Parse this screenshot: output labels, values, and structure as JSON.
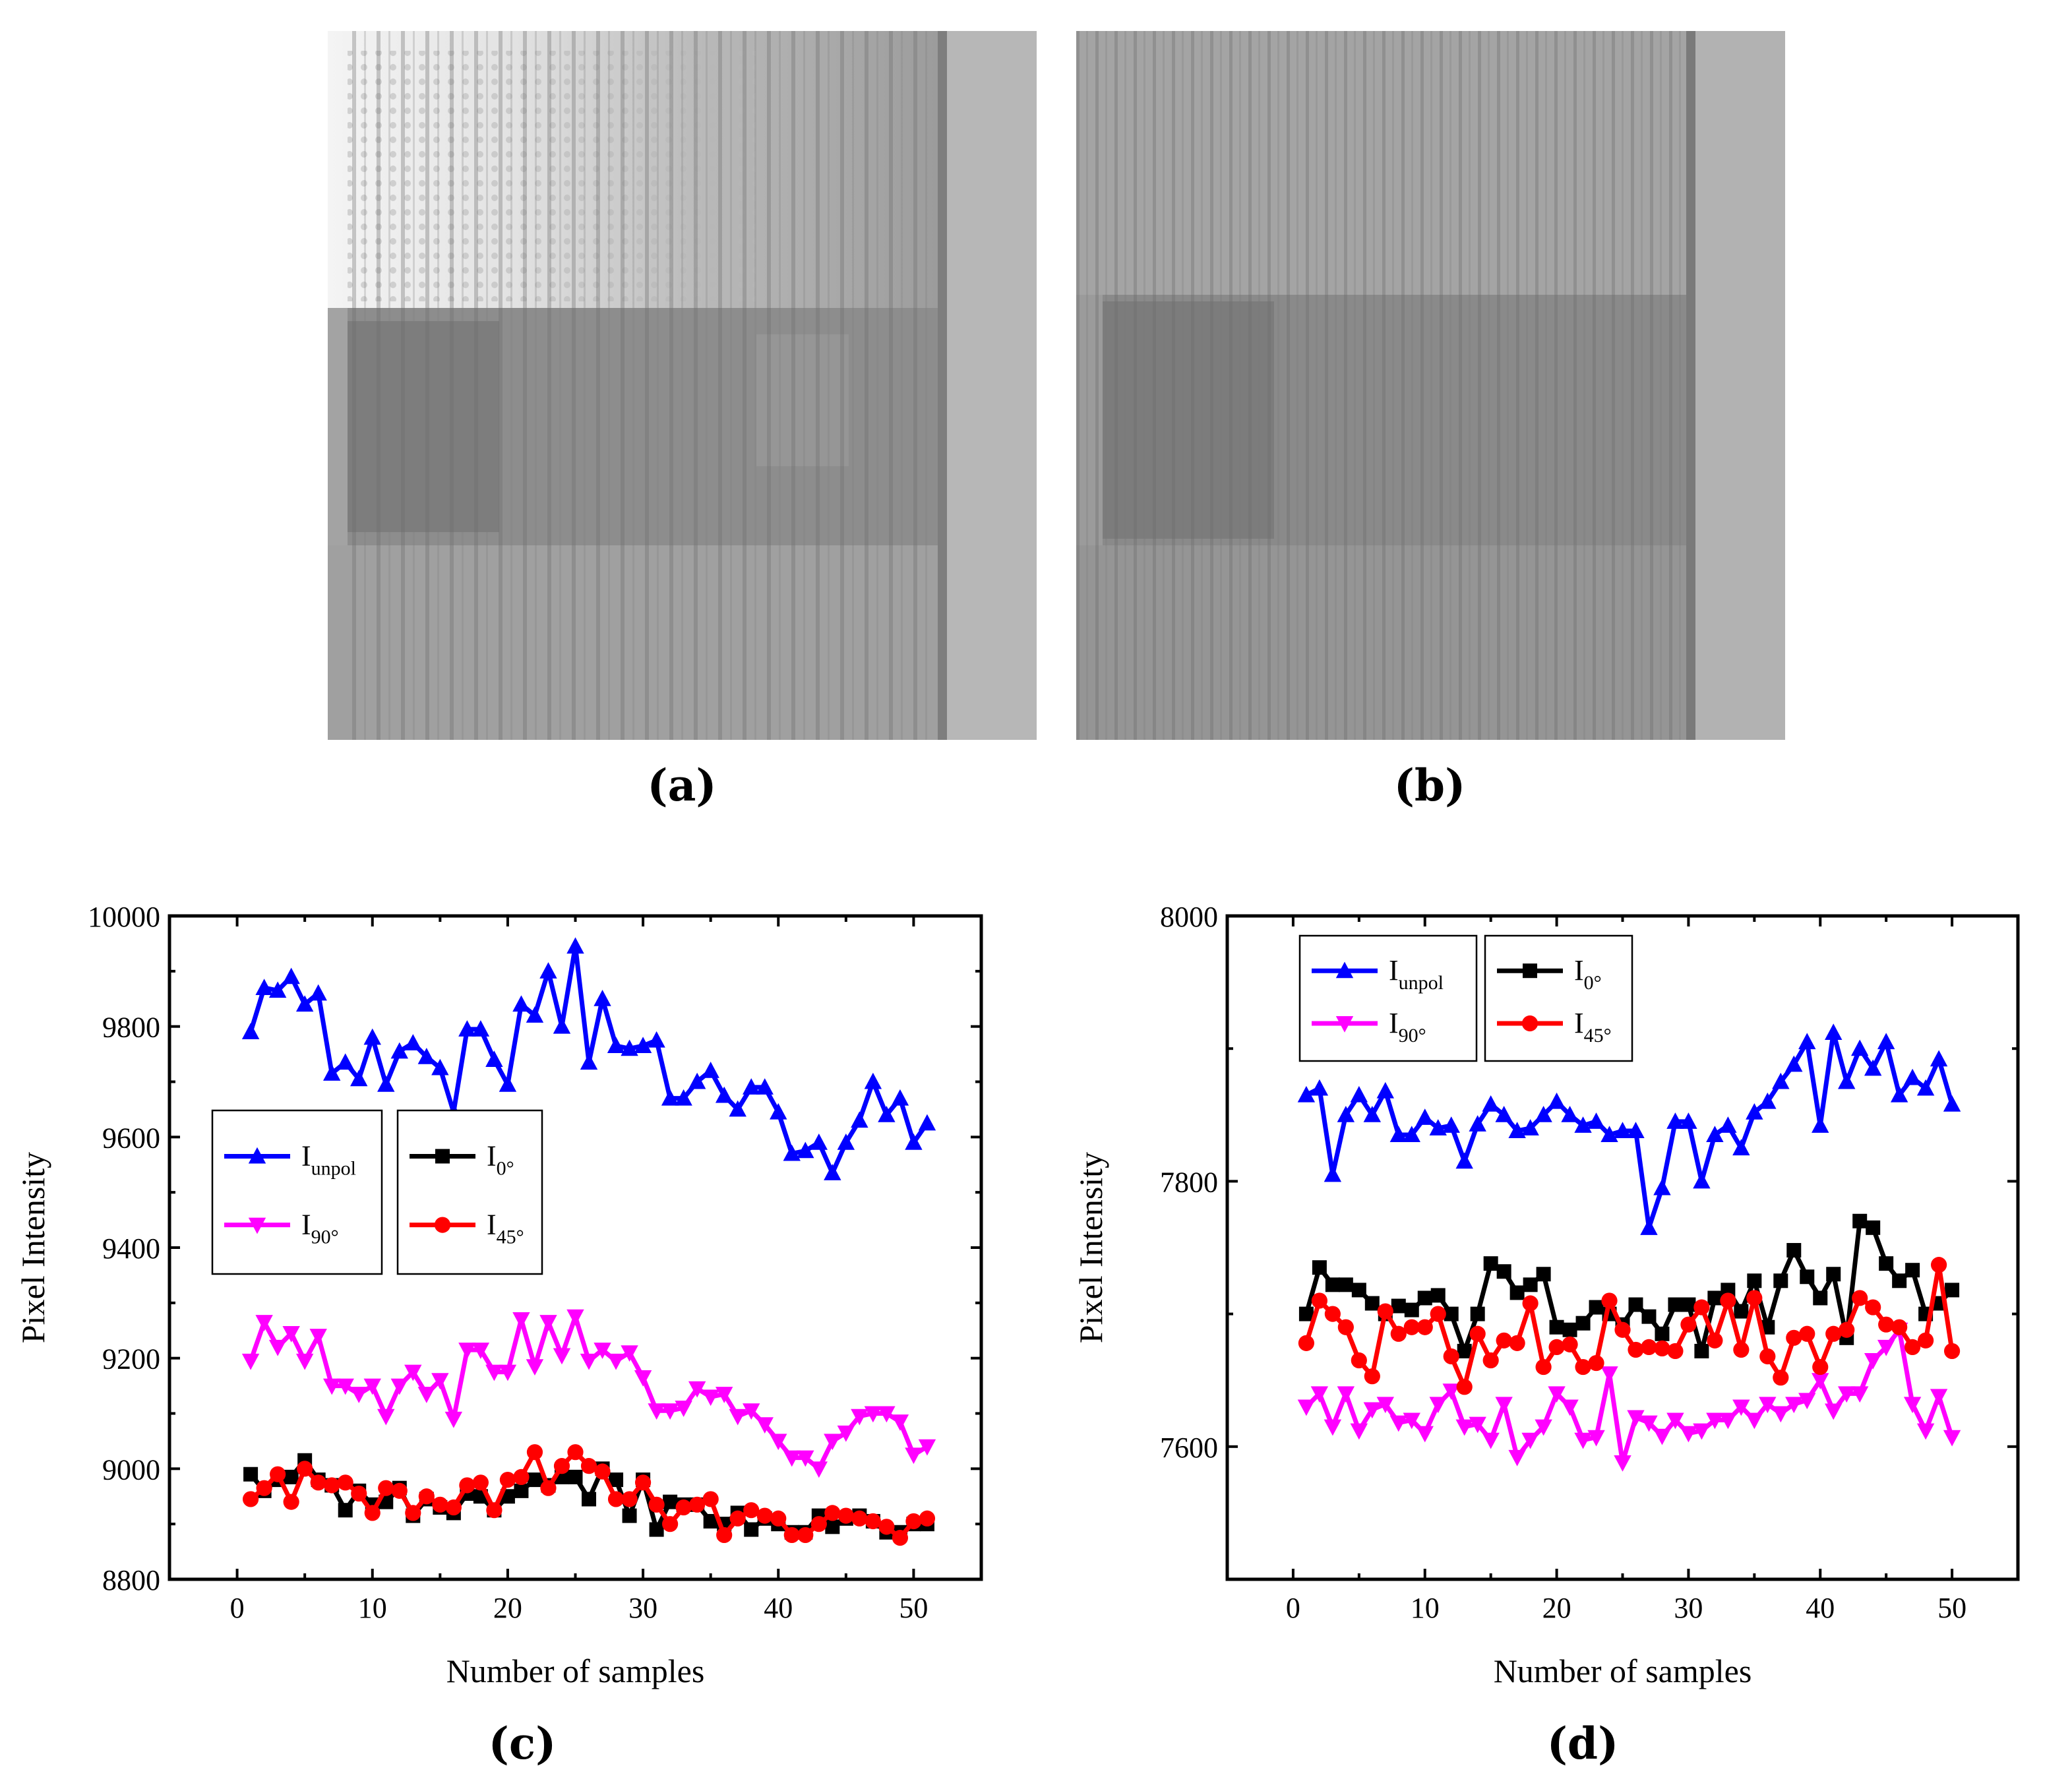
{
  "captions": {
    "a": "(a)",
    "b": "(b)",
    "c": "(c)",
    "d": "(d)"
  },
  "images": {
    "a": {
      "description_name": "polarization-image-unpolarized",
      "tone": "grayscale"
    },
    "b": {
      "description_name": "polarization-image-polarized",
      "tone": "grayscale"
    }
  },
  "chart_data": [
    {
      "type": "line",
      "panel": "c",
      "xlabel": "Number of samples",
      "ylabel": "Pixel Intensity",
      "xlim": [
        -5,
        55
      ],
      "ylim": [
        8800,
        10000
      ],
      "xticks": [
        0,
        10,
        20,
        30,
        40,
        50
      ],
      "yticks": [
        8800,
        9000,
        9200,
        9400,
        9600,
        9800,
        10000
      ],
      "legend_position": "middle-left",
      "series": [
        {
          "name": "I_unpol",
          "label_main": "I",
          "label_sub": "unpol",
          "color": "#0000ff",
          "marker": "triangle-up",
          "values": [
            9790,
            9870,
            9865,
            9890,
            9840,
            9860,
            9715,
            9735,
            9705,
            9780,
            9695,
            9755,
            9770,
            9745,
            9725,
            9645,
            9795,
            9795,
            9740,
            9695,
            9840,
            9820,
            9900,
            9800,
            9945,
            9735,
            9850,
            9765,
            9760,
            9765,
            9775,
            9670,
            9670,
            9700,
            9720,
            9675,
            9650,
            9690,
            9690,
            9645,
            9570,
            9575,
            9590,
            9535,
            9590,
            9630,
            9700,
            9640,
            9670,
            9590,
            9625
          ]
        },
        {
          "name": "I_90",
          "label_main": "I",
          "label_sub": "90°",
          "color": "#ff00ff",
          "marker": "triangle-down",
          "values": [
            9195,
            9265,
            9220,
            9245,
            9195,
            9240,
            9150,
            9150,
            9135,
            9150,
            9095,
            9150,
            9175,
            9135,
            9160,
            9090,
            9215,
            9215,
            9175,
            9175,
            9270,
            9185,
            9265,
            9205,
            9275,
            9195,
            9215,
            9195,
            9210,
            9165,
            9105,
            9105,
            9110,
            9145,
            9130,
            9135,
            9095,
            9105,
            9080,
            9050,
            9020,
            9020,
            9000,
            9050,
            9065,
            9095,
            9100,
            9100,
            9085,
            9025,
            9040
          ]
        },
        {
          "name": "I_0",
          "label_main": "I",
          "label_sub": "0°",
          "color": "#000000",
          "marker": "square",
          "values": [
            8990,
            8960,
            8980,
            8985,
            9015,
            8980,
            8970,
            8925,
            8960,
            8935,
            8940,
            8965,
            8915,
            8945,
            8930,
            8920,
            8955,
            8950,
            8925,
            8950,
            8960,
            8980,
            8970,
            8985,
            8985,
            8945,
            9000,
            8980,
            8915,
            8980,
            8890,
            8940,
            8935,
            8935,
            8905,
            8900,
            8920,
            8890,
            8910,
            8900,
            8885,
            8885,
            8915,
            8895,
            8910,
            8915,
            8905,
            8885,
            8885,
            8900,
            8900
          ]
        },
        {
          "name": "I_45",
          "label_main": "I",
          "label_sub": "45°",
          "color": "#ff0000",
          "marker": "circle",
          "values": [
            8945,
            8965,
            8990,
            8940,
            9000,
            8975,
            8970,
            8975,
            8955,
            8920,
            8965,
            8960,
            8920,
            8950,
            8935,
            8930,
            8970,
            8975,
            8925,
            8980,
            8985,
            9030,
            8965,
            9005,
            9030,
            9005,
            8995,
            8945,
            8945,
            8975,
            8935,
            8900,
            8930,
            8935,
            8945,
            8880,
            8910,
            8925,
            8915,
            8910,
            8880,
            8880,
            8900,
            8920,
            8915,
            8910,
            8905,
            8895,
            8875,
            8905,
            8910
          ]
        }
      ]
    },
    {
      "type": "line",
      "panel": "d",
      "xlabel": "Number of samples",
      "ylabel": "Pixel Intensity",
      "xlim": [
        -5,
        55
      ],
      "ylim": [
        7500,
        8000
      ],
      "xticks": [
        0,
        10,
        20,
        30,
        40,
        50
      ],
      "yticks": [
        7600,
        7800,
        8000
      ],
      "legend_position": "top-left",
      "series": [
        {
          "name": "I_unpol",
          "label_main": "I",
          "label_sub": "unpol",
          "color": "#0000ff",
          "marker": "triangle-up",
          "values": [
            7865,
            7870,
            7805,
            7850,
            7865,
            7850,
            7868,
            7835,
            7835,
            7848,
            7840,
            7842,
            7815,
            7843,
            7858,
            7850,
            7838,
            7840,
            7850,
            7860,
            7850,
            7842,
            7845,
            7835,
            7838,
            7838,
            7765,
            7795,
            7845,
            7845,
            7800,
            7835,
            7842,
            7825,
            7852,
            7860,
            7875,
            7888,
            7905,
            7842,
            7912,
            7875,
            7900,
            7885,
            7905,
            7865,
            7878,
            7870,
            7892,
            7858
          ]
        },
        {
          "name": "I_90",
          "label_main": "I",
          "label_sub": "90°",
          "color": "#ff00ff",
          "marker": "triangle-down",
          "values": [
            7630,
            7640,
            7615,
            7640,
            7612,
            7628,
            7632,
            7618,
            7620,
            7610,
            7632,
            7642,
            7615,
            7617,
            7605,
            7632,
            7592,
            7605,
            7615,
            7640,
            7630,
            7605,
            7607,
            7655,
            7588,
            7622,
            7618,
            7608,
            7620,
            7610,
            7612,
            7620,
            7620,
            7630,
            7620,
            7632,
            7625,
            7632,
            7635,
            7650,
            7627,
            7640,
            7640,
            7665,
            7675,
            7688,
            7632,
            7612,
            7638,
            7607
          ]
        },
        {
          "name": "I_0",
          "label_main": "I",
          "label_sub": "0°",
          "color": "#000000",
          "marker": "square",
          "values": [
            7700,
            7735,
            7722,
            7722,
            7718,
            7708,
            7700,
            7706,
            7703,
            7712,
            7714,
            7700,
            7672,
            7700,
            7738,
            7732,
            7716,
            7722,
            7730,
            7690,
            7688,
            7693,
            7705,
            7700,
            7692,
            7707,
            7698,
            7685,
            7707,
            7707,
            7672,
            7712,
            7718,
            7702,
            7725,
            7690,
            7725,
            7748,
            7728,
            7712,
            7730,
            7682,
            7770,
            7765,
            7738,
            7725,
            7733,
            7700,
            7708,
            7718
          ]
        },
        {
          "name": "I_45",
          "label_main": "I",
          "label_sub": "45°",
          "color": "#ff0000",
          "marker": "circle",
          "values": [
            7678,
            7710,
            7700,
            7690,
            7665,
            7653,
            7702,
            7685,
            7690,
            7690,
            7700,
            7668,
            7645,
            7685,
            7665,
            7680,
            7678,
            7708,
            7660,
            7675,
            7677,
            7660,
            7663,
            7710,
            7688,
            7673,
            7675,
            7674,
            7672,
            7692,
            7705,
            7680,
            7710,
            7673,
            7712,
            7668,
            7652,
            7682,
            7685,
            7660,
            7685,
            7688,
            7712,
            7705,
            7692,
            7690,
            7675,
            7680,
            7737,
            7672
          ]
        }
      ]
    }
  ]
}
